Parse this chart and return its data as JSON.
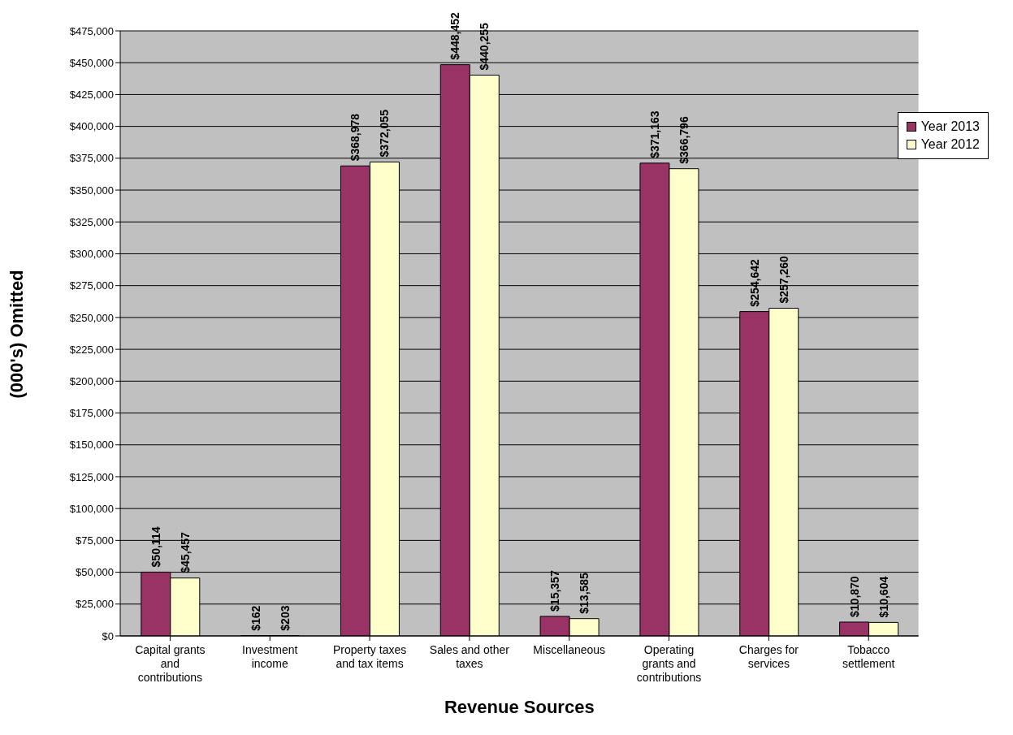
{
  "chart_data": {
    "type": "bar",
    "xlabel": "Revenue Sources",
    "ylabel": "(000's) Omitted",
    "categories": [
      "Capital grants and contributions",
      "Investment income",
      "Property taxes and tax items",
      "Sales and other taxes",
      "Miscellaneous",
      "Operating grants and contributions",
      "Charges for services",
      "Tobacco settlement"
    ],
    "series": [
      {
        "name": "Year 2013",
        "color": "#993366",
        "values": [
          50114,
          162,
          368978,
          448452,
          15357,
          371163,
          254642,
          10870
        ],
        "value_labels": [
          "$50,114",
          "$162",
          "$368,978",
          "$448,452",
          "$15,357",
          "$371,163",
          "$254,642",
          "$10,870"
        ]
      },
      {
        "name": "Year 2012",
        "color": "#ffffcc",
        "values": [
          45457,
          203,
          372055,
          440255,
          13585,
          366796,
          257260,
          10604
        ],
        "value_labels": [
          "$45,457",
          "$203",
          "$372,055",
          "$440,255",
          "$13,585",
          "$366,796",
          "$257,260",
          "$10,604"
        ]
      }
    ],
    "ylim": [
      0,
      475000
    ],
    "yticks": [
      {
        "value": 0,
        "label": "$0"
      },
      {
        "value": 25000,
        "label": "$25,000"
      },
      {
        "value": 50000,
        "label": "$50,000"
      },
      {
        "value": 75000,
        "label": "$75,000"
      },
      {
        "value": 100000,
        "label": "$100,000"
      },
      {
        "value": 125000,
        "label": "$125,000"
      },
      {
        "value": 150000,
        "label": "$150,000"
      },
      {
        "value": 175000,
        "label": "$175,000"
      },
      {
        "value": 200000,
        "label": "$200,000"
      },
      {
        "value": 225000,
        "label": "$225,000"
      },
      {
        "value": 250000,
        "label": "$250,000"
      },
      {
        "value": 275000,
        "label": "$275,000"
      },
      {
        "value": 300000,
        "label": "$300,000"
      },
      {
        "value": 325000,
        "label": "$325,000"
      },
      {
        "value": 350000,
        "label": "$350,000"
      },
      {
        "value": 375000,
        "label": "$375,000"
      },
      {
        "value": 400000,
        "label": "$400,000"
      },
      {
        "value": 425000,
        "label": "$425,000"
      },
      {
        "value": 450000,
        "label": "$450,000"
      },
      {
        "value": 475000,
        "label": "$475,000"
      }
    ],
    "grid": "y",
    "legend": "top right"
  }
}
